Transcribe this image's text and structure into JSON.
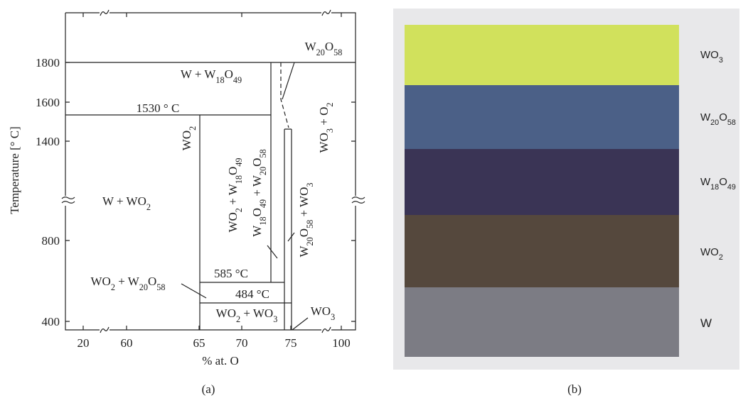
{
  "panel_a": {
    "label": "(a)",
    "y_axis_title": "Temperature [° C]",
    "x_axis_title": "% at. O",
    "yticks": [
      "1800",
      "1600",
      "1400",
      "800",
      "400"
    ],
    "xticks": [
      "20",
      "60",
      "65",
      "70",
      "75",
      "100"
    ],
    "regions": [
      "W + W18O49",
      "W20O58",
      "WO2",
      "WO2 + W18O49",
      "W18O49 + W20O58",
      "WO3 + O2",
      "W + WO2",
      "W20O58 + WO3",
      "WO2 + W20O58",
      "WO2 + WO3",
      "WO3"
    ],
    "annotations": [
      "1530 ° C",
      "585 °C",
      "484 °C"
    ]
  },
  "panel_b": {
    "label": "(b)",
    "layers": [
      "WO3",
      "W20O58",
      "W18O49",
      "WO2",
      "W"
    ]
  }
}
